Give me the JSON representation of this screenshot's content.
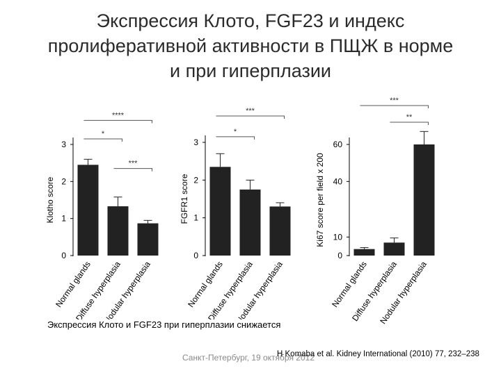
{
  "slide": {
    "title_lines": [
      "Экспрессия Клото, FGF23 и индекс",
      "пролиферативной активности в ПЩЖ в норме",
      "и при гиперплазии"
    ],
    "caption": "Экспрессия Клото и FGF23 при гиперплазии снижается",
    "footer_left": "Санкт-Петербург, 19 октября 2012",
    "footer_right": "H Komaba et al. Kidney International (2010) 77, 232–238"
  },
  "chart_data": [
    {
      "type": "bar",
      "categories": [
        "Normal glands",
        "Diffuse hyperplasia",
        "Nodular hyperplasia"
      ],
      "values": [
        2.45,
        1.33,
        0.87
      ],
      "errors": [
        0.15,
        0.25,
        0.08
      ],
      "ylabel": "Klotho score",
      "ylim": [
        0,
        3
      ],
      "yticks": [
        "0",
        "1",
        "2",
        "3"
      ],
      "significance": [
        {
          "from": 0,
          "to": 2,
          "label": "****",
          "level": 3.65
        },
        {
          "from": 0,
          "to": 1,
          "label": "*",
          "level": 3.15
        },
        {
          "from": 1,
          "to": 2,
          "label": "***",
          "level": 2.35
        }
      ]
    },
    {
      "type": "bar",
      "categories": [
        "Normal glands",
        "Diffuse hyperplasia",
        "Nodular hyperplasia"
      ],
      "values": [
        2.35,
        1.75,
        1.3
      ],
      "errors": [
        0.35,
        0.25,
        0.1
      ],
      "ylabel": "FGFR1 score",
      "ylim": [
        0,
        3
      ],
      "yticks": [
        "0",
        "1",
        "2",
        "3"
      ],
      "significance": [
        {
          "from": 0,
          "to": 2,
          "label": "***",
          "level": 3.7
        },
        {
          "from": 0,
          "to": 1,
          "label": "*",
          "level": 3.15
        }
      ]
    },
    {
      "type": "bar",
      "categories": [
        "Normal glands",
        "Diffuse hyperplasia",
        "Nodular hyperplasia"
      ],
      "values": [
        3.5,
        7,
        60
      ],
      "errors": [
        0.8,
        2.5,
        7
      ],
      "ylabel": "Ki67 score per field x 200",
      "ylim": [
        0,
        60
      ],
      "yticks": [
        "0",
        "10",
        "40",
        "60"
      ],
      "significance": [
        {
          "from": 0,
          "to": 2,
          "label": "***",
          "level": 81
        },
        {
          "from": 1,
          "to": 2,
          "label": "**",
          "level": 72
        }
      ]
    }
  ]
}
